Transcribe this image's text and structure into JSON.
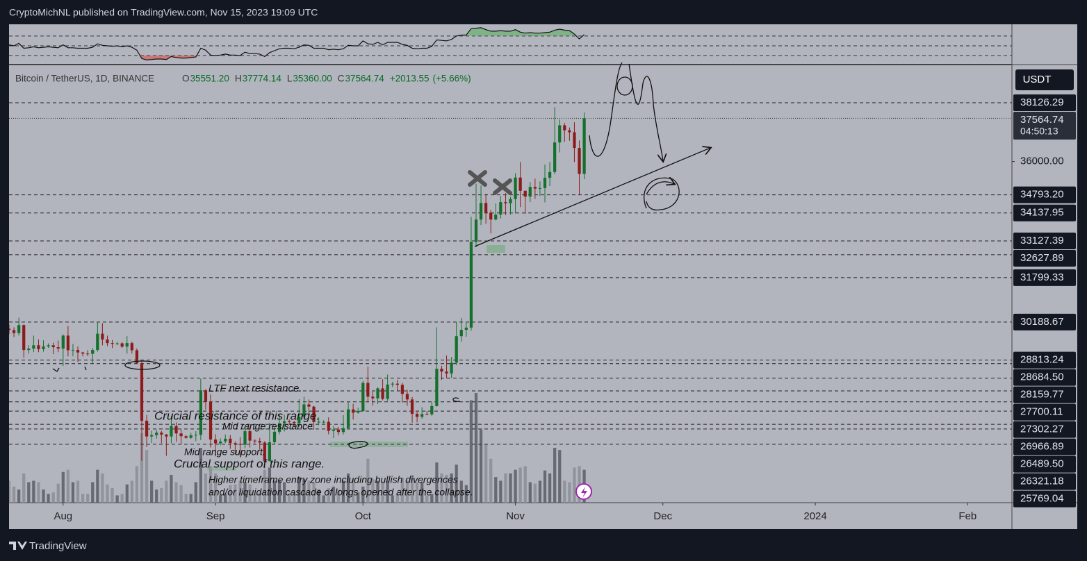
{
  "header": "CryptoMichNL published on TradingView.com, Nov 15, 2023 19:09 UTC",
  "footer": "TradingView",
  "currency_button": "USDT",
  "chart_data": {
    "type": "candlestick",
    "legend": {
      "symbol": "Bitcoin / TetherUS, 1D, BINANCE",
      "items": [
        {
          "key": "O",
          "value": 35551.2,
          "label": "35551.20"
        },
        {
          "key": "H",
          "value": 37774.14,
          "label": "37774.14"
        },
        {
          "key": "L",
          "value": 35360,
          "label": "35360.00"
        },
        {
          "key": "C",
          "value": 37564.74,
          "label": "37564.74"
        }
      ],
      "change": {
        "value": 2013.55,
        "label": "+2013.55"
      },
      "change_pct": {
        "value": 5.66,
        "label": "(+5.66%)"
      }
    },
    "countdown": "04:50:13",
    "up_color": "#14702c",
    "down_color": "#8e1b1b",
    "xlim": [
      "2023-07-21",
      "2024-02-10"
    ],
    "xticks": [
      {
        "value": "2023-08-01",
        "label": "Aug"
      },
      {
        "value": "2023-09-01",
        "label": "Sep"
      },
      {
        "value": "2023-10-01",
        "label": "Oct"
      },
      {
        "value": "2023-11-01",
        "label": "Nov"
      },
      {
        "value": "2023-12-01",
        "label": "Dec"
      },
      {
        "value": "2024-01-01",
        "label": "2024"
      },
      {
        "value": "2024-02-01",
        "label": "Feb"
      }
    ],
    "ylim": [
      23654,
      39458
    ],
    "yticks": [
      {
        "value": 36000,
        "label": "36000.00"
      }
    ],
    "levels": [
      {
        "value": 38126.29,
        "label": "38126.29"
      },
      {
        "value": 34793.2,
        "label": "34793.20"
      },
      {
        "value": 34137.95,
        "label": "34137.95"
      },
      {
        "value": 33127.39,
        "label": "33127.39"
      },
      {
        "value": 32627.89,
        "label": "32627.89"
      },
      {
        "value": 31799.33,
        "label": "31799.33"
      },
      {
        "value": 30188.67,
        "label": "30188.67"
      },
      {
        "value": 28813.24,
        "label": "28813.24"
      },
      {
        "value": 28684.5,
        "label": "28684.50"
      },
      {
        "value": 28159.77,
        "label": "28159.77"
      },
      {
        "value": 27700.11,
        "label": "27700.11"
      },
      {
        "value": 27302.27,
        "label": "27302.27"
      },
      {
        "value": 26966.89,
        "label": "26966.89"
      },
      {
        "value": 26489.5,
        "label": "26489.50"
      },
      {
        "value": 26321.18,
        "label": "26321.18"
      },
      {
        "value": 25769.04,
        "label": "25769.04"
      }
    ],
    "annotations": [
      "LTF next resistance.",
      "Crucial resistance of this range.",
      "Mid range resistance.",
      "Mid range support.",
      "Crucial support of this range.",
      "Higher timeframe entry zone including bullish divergences",
      "and/or liquidation cascade of longs opened after the collapse."
    ],
    "x": [
      "2023-07-21",
      "2023-07-22",
      "2023-07-23",
      "2023-07-24",
      "2023-07-25",
      "2023-07-26",
      "2023-07-27",
      "2023-07-28",
      "2023-07-29",
      "2023-07-30",
      "2023-07-31",
      "2023-08-01",
      "2023-08-02",
      "2023-08-03",
      "2023-08-04",
      "2023-08-05",
      "2023-08-06",
      "2023-08-07",
      "2023-08-08",
      "2023-08-09",
      "2023-08-10",
      "2023-08-11",
      "2023-08-12",
      "2023-08-13",
      "2023-08-14",
      "2023-08-15",
      "2023-08-16",
      "2023-08-17",
      "2023-08-18",
      "2023-08-19",
      "2023-08-20",
      "2023-08-21",
      "2023-08-22",
      "2023-08-23",
      "2023-08-24",
      "2023-08-25",
      "2023-08-26",
      "2023-08-27",
      "2023-08-28",
      "2023-08-29",
      "2023-08-30",
      "2023-08-31",
      "2023-09-01",
      "2023-09-02",
      "2023-09-03",
      "2023-09-04",
      "2023-09-05",
      "2023-09-06",
      "2023-09-07",
      "2023-09-08",
      "2023-09-09",
      "2023-09-10",
      "2023-09-11",
      "2023-09-12",
      "2023-09-13",
      "2023-09-14",
      "2023-09-15",
      "2023-09-16",
      "2023-09-17",
      "2023-09-18",
      "2023-09-19",
      "2023-09-20",
      "2023-09-21",
      "2023-09-22",
      "2023-09-23",
      "2023-09-24",
      "2023-09-25",
      "2023-09-26",
      "2023-09-27",
      "2023-09-28",
      "2023-09-29",
      "2023-09-30",
      "2023-10-01",
      "2023-10-02",
      "2023-10-03",
      "2023-10-04",
      "2023-10-05",
      "2023-10-06",
      "2023-10-07",
      "2023-10-08",
      "2023-10-09",
      "2023-10-10",
      "2023-10-11",
      "2023-10-12",
      "2023-10-13",
      "2023-10-14",
      "2023-10-15",
      "2023-10-16",
      "2023-10-17",
      "2023-10-18",
      "2023-10-19",
      "2023-10-20",
      "2023-10-21",
      "2023-10-22",
      "2023-10-23",
      "2023-10-24",
      "2023-10-25",
      "2023-10-26",
      "2023-10-27",
      "2023-10-28",
      "2023-10-29",
      "2023-10-30",
      "2023-10-31",
      "2023-11-01",
      "2023-11-02",
      "2023-11-03",
      "2023-11-04",
      "2023-11-05",
      "2023-11-06",
      "2023-11-07",
      "2023-11-08",
      "2023-11-09",
      "2023-11-10",
      "2023-11-11",
      "2023-11-12",
      "2023-11-13",
      "2023-11-14",
      "2023-11-15"
    ],
    "open": [
      29950,
      29900,
      29790,
      30080,
      29180,
      29230,
      29350,
      29210,
      29310,
      29350,
      29280,
      29230,
      29700,
      29170,
      29180,
      29090,
      29050,
      29040,
      29180,
      29770,
      29560,
      29430,
      29400,
      29420,
      29300,
      29430,
      29170,
      28700,
      26620,
      26050,
      26100,
      26190,
      26120,
      26050,
      26430,
      26160,
      26060,
      26000,
      26090,
      26110,
      27720,
      27300,
      25940,
      25800,
      25870,
      25970,
      25810,
      25780,
      25750,
      26240,
      25900,
      25890,
      25830,
      25160,
      25840,
      26220,
      26530,
      26600,
      26570,
      26530,
      26760,
      27210,
      27130,
      26570,
      26580,
      26580,
      26250,
      26300,
      26210,
      26350,
      27030,
      26910,
      26970,
      27990,
      27490,
      27430,
      27790,
      27410,
      27930,
      27960,
      27920,
      27590,
      27390,
      26870,
      26760,
      26860,
      26850,
      27150,
      28500,
      28400,
      28330,
      28720,
      29680,
      29910,
      29990,
      33090,
      33900,
      34500,
      34150,
      33900,
      34080,
      34530,
      34490,
      34640,
      35420,
      34940,
      34730,
      35080,
      35020,
      35040,
      35410,
      35620,
      36690,
      37310,
      37130,
      37060,
      36490,
      35551.2
    ],
    "high": [
      30100,
      30000,
      30350,
      30100,
      29350,
      29700,
      29560,
      29530,
      29420,
      29450,
      29520,
      29750,
      30050,
      29400,
      29310,
      29110,
      29170,
      29250,
      30200,
      30150,
      29700,
      29540,
      29480,
      29460,
      29680,
      29480,
      29240,
      28780,
      26830,
      26260,
      26290,
      26250,
      26140,
      26800,
      26560,
      26300,
      26100,
      26180,
      26240,
      28150,
      27760,
      27570,
      26130,
      25980,
      26120,
      26100,
      25870,
      26030,
      26430,
      26400,
      25950,
      26000,
      25880,
      26550,
      26390,
      26860,
      26850,
      26670,
      26620,
      27400,
      27490,
      27390,
      27160,
      26740,
      26640,
      26740,
      26430,
      26390,
      26820,
      27310,
      27230,
      27090,
      28060,
      28580,
      27670,
      27830,
      28120,
      28290,
      28030,
      28100,
      27990,
      27740,
      27480,
      26940,
      27110,
      26970,
      27290,
      30000,
      28610,
      28980,
      28930,
      30200,
      30340,
      30200,
      34000,
      35200,
      35130,
      34830,
      34250,
      34480,
      34750,
      34850,
      34720,
      35580,
      35980,
      34950,
      35250,
      35380,
      35280,
      35890,
      35980,
      37970,
      37520,
      37400,
      37230,
      37420,
      36760,
      37774.14
    ],
    "low": [
      29750,
      29650,
      29700,
      28900,
      29050,
      29100,
      29100,
      29120,
      29250,
      29030,
      29100,
      28600,
      28950,
      28950,
      28750,
      28950,
      28960,
      28700,
      29120,
      29350,
      29320,
      29250,
      29350,
      29250,
      29050,
      29050,
      28700,
      25170,
      25670,
      25810,
      25970,
      25800,
      25350,
      25800,
      25860,
      25780,
      25970,
      25960,
      25880,
      25920,
      27020,
      25650,
      25330,
      25730,
      25810,
      25600,
      25400,
      25370,
      25620,
      25650,
      25800,
      25570,
      24900,
      25140,
      25770,
      26130,
      26230,
      26480,
      26400,
      26400,
      26680,
      26870,
      26370,
      26460,
      26520,
      26130,
      25990,
      26090,
      26120,
      26340,
      26660,
      26880,
      26950,
      27280,
      27160,
      27220,
      27360,
      27340,
      27840,
      27710,
      27280,
      27160,
      26550,
      26560,
      26690,
      26820,
      26800,
      27130,
      28100,
      28150,
      28170,
      28630,
      29480,
      29660,
      29880,
      32900,
      33700,
      33750,
      33400,
      33870,
      33940,
      34060,
      34080,
      34120,
      34350,
      34100,
      34530,
      34650,
      34750,
      34520,
      35110,
      35540,
      36330,
      36710,
      36750,
      35980,
      34800,
      35360
    ],
    "close": [
      29900,
      29790,
      30080,
      29180,
      29230,
      29350,
      29210,
      29310,
      29350,
      29280,
      29230,
      29700,
      29170,
      29180,
      29090,
      29050,
      29040,
      29180,
      29770,
      29560,
      29430,
      29400,
      29420,
      29300,
      29430,
      29170,
      28700,
      26620,
      26050,
      26100,
      26190,
      26120,
      26050,
      26430,
      26160,
      26060,
      26000,
      26090,
      26110,
      27720,
      27300,
      25940,
      25800,
      25870,
      25970,
      25810,
      25780,
      25750,
      26240,
      25900,
      25890,
      25830,
      25160,
      25840,
      26220,
      26530,
      26600,
      26570,
      26530,
      26760,
      27210,
      27130,
      26570,
      26580,
      26580,
      26250,
      26300,
      26210,
      26350,
      27030,
      26910,
      26970,
      27990,
      27490,
      27430,
      27790,
      27410,
      27930,
      27960,
      27920,
      27590,
      27390,
      26870,
      26760,
      26860,
      26850,
      27150,
      28500,
      28400,
      28330,
      28720,
      29680,
      29910,
      29990,
      33090,
      33900,
      34500,
      34150,
      33900,
      34080,
      34530,
      34490,
      34640,
      35420,
      34940,
      34730,
      35080,
      35020,
      35040,
      35410,
      35620,
      36690,
      37310,
      37130,
      37060,
      36490,
      35551.2,
      37564.74
    ],
    "volume": [
      30,
      22,
      18,
      40,
      28,
      30,
      28,
      18,
      12,
      14,
      26,
      42,
      45,
      28,
      30,
      12,
      12,
      28,
      45,
      40,
      25,
      20,
      10,
      12,
      25,
      30,
      50,
      95,
      72,
      30,
      18,
      20,
      30,
      38,
      28,
      24,
      12,
      12,
      28,
      75,
      40,
      50,
      40,
      10,
      12,
      24,
      25,
      30,
      28,
      25,
      12,
      14,
      45,
      48,
      30,
      30,
      28,
      12,
      14,
      35,
      32,
      30,
      28,
      18,
      10,
      20,
      22,
      18,
      30,
      40,
      32,
      14,
      22,
      60,
      32,
      30,
      28,
      30,
      10,
      12,
      34,
      30,
      38,
      28,
      28,
      10,
      12,
      55,
      40,
      38,
      40,
      52,
      30,
      24,
      140,
      150,
      100,
      80,
      60,
      35,
      30,
      40,
      40,
      45,
      48,
      50,
      28,
      26,
      30,
      44,
      40,
      75,
      72,
      30,
      28,
      48,
      50,
      45
    ],
    "rsi": [
      52,
      50,
      55,
      45,
      46,
      48,
      46,
      47,
      48,
      47,
      46,
      52,
      46,
      46,
      45,
      45,
      45,
      47,
      54,
      51,
      50,
      49,
      50,
      48,
      50,
      47,
      41,
      24,
      21,
      22,
      23,
      23,
      22,
      28,
      26,
      25,
      25,
      26,
      27,
      45,
      41,
      31,
      30,
      31,
      33,
      31,
      31,
      30,
      37,
      34,
      34,
      33,
      28,
      36,
      40,
      44,
      45,
      45,
      44,
      47,
      52,
      51,
      45,
      45,
      45,
      42,
      43,
      42,
      44,
      51,
      50,
      50,
      60,
      54,
      53,
      57,
      52,
      57,
      57,
      57,
      53,
      51,
      45,
      44,
      45,
      45,
      49,
      62,
      61,
      60,
      63,
      70,
      72,
      72,
      85,
      86,
      87,
      83,
      80,
      80,
      81,
      80,
      80,
      83,
      78,
      76,
      77,
      76,
      76,
      77,
      78,
      82,
      84,
      82,
      81,
      74,
      64,
      73
    ],
    "rsi_ylim": [
      13,
      94
    ],
    "rsi_levels": [
      70,
      50,
      30
    ]
  }
}
